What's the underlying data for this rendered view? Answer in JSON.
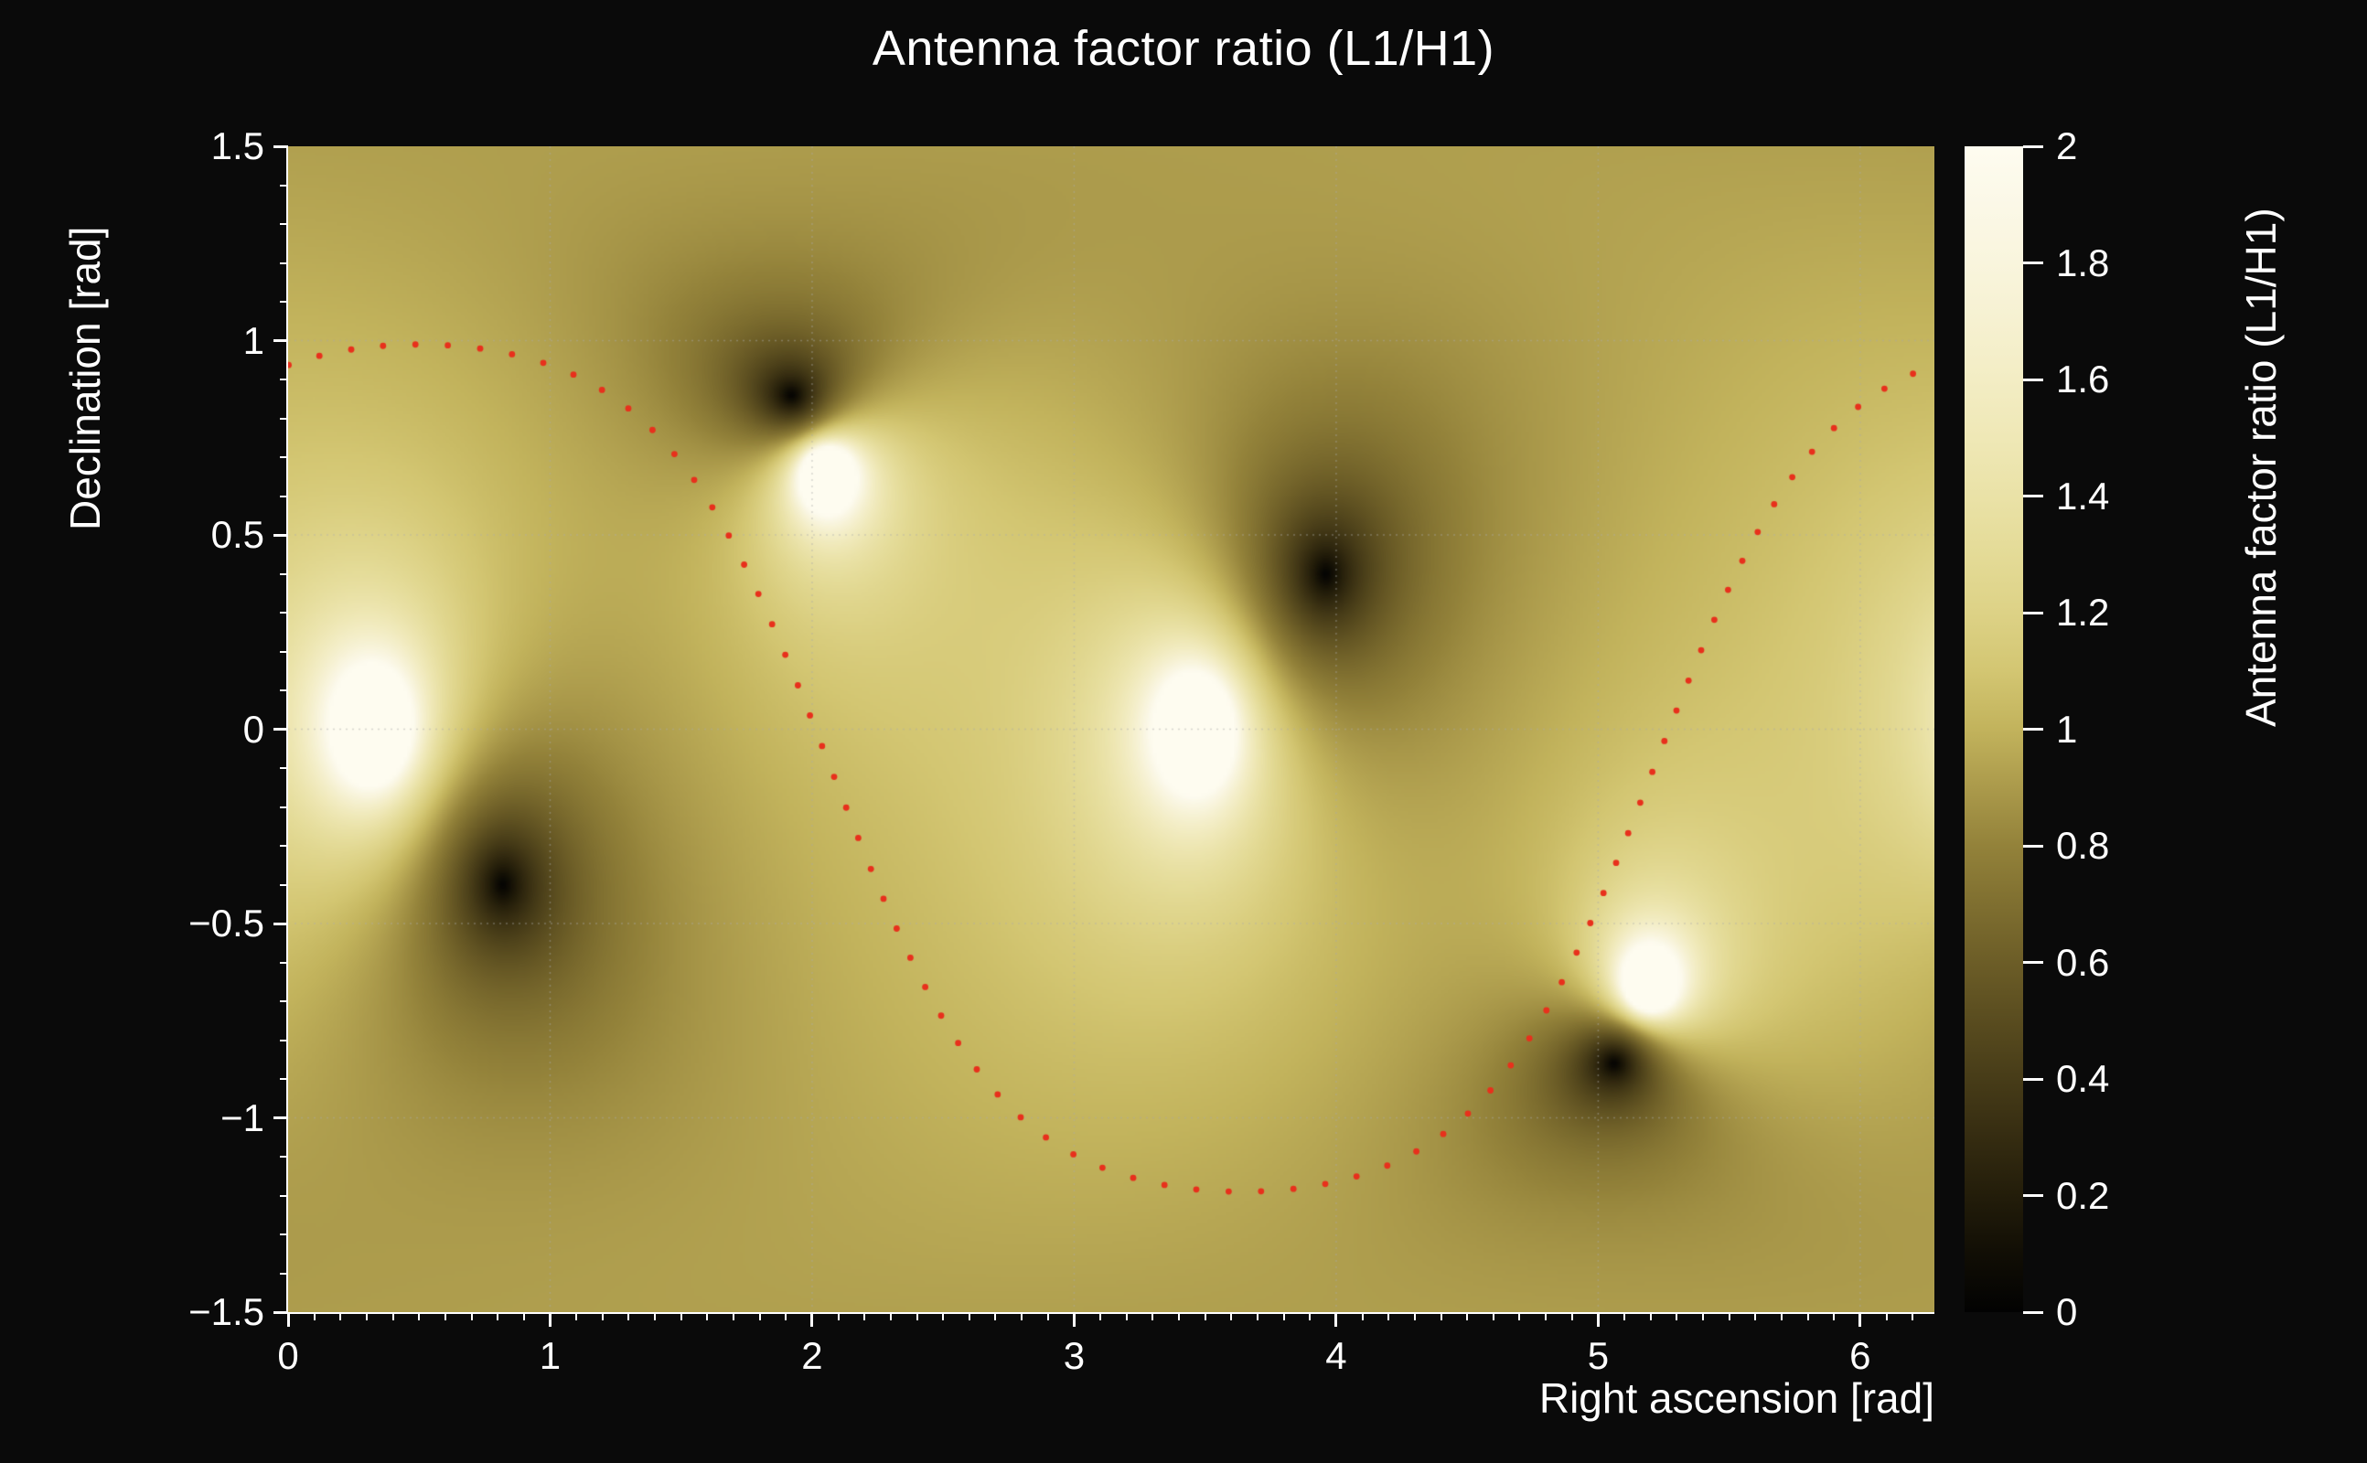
{
  "figure": {
    "title": "Antenna factor ratio (L1/H1)",
    "background_color": "#0a0a0a",
    "text_color": "#ffffff"
  },
  "axes": {
    "x": {
      "title": "Right ascension [rad]",
      "range": [
        0,
        6.2832
      ],
      "tick_values": [
        0,
        1,
        2,
        3,
        4,
        5,
        6
      ],
      "tick_labels": [
        "0",
        "1",
        "2",
        "3",
        "4",
        "5",
        "6"
      ],
      "minor_step": 0.1
    },
    "y": {
      "title": "Declination [rad]",
      "range": [
        -1.5,
        1.5
      ],
      "tick_values": [
        -1.5,
        -1,
        -0.5,
        0,
        0.5,
        1,
        1.5
      ],
      "tick_labels": [
        "−1.5",
        "−1",
        "−0.5",
        "0",
        "0.5",
        "1",
        "1.5"
      ],
      "minor_step": 0.1
    },
    "z": {
      "title": "Antenna factor ratio (L1/H1)",
      "range": [
        0,
        2
      ],
      "tick_values": [
        0,
        0.2,
        0.4,
        0.6,
        0.8,
        1,
        1.2,
        1.4,
        1.6,
        1.8,
        2
      ],
      "tick_labels": [
        "0",
        "0.2",
        "0.4",
        "0.6",
        "0.8",
        "1",
        "1.2",
        "1.4",
        "1.6",
        "1.8",
        "2"
      ]
    }
  },
  "chart_data": {
    "type": "heatmap",
    "title": "Antenna factor ratio (L1/H1)",
    "xlabel": "Right ascension [rad]",
    "ylabel": "Declination [rad]",
    "zlabel": "Antenna factor ratio (L1/H1)",
    "x_range": [
      0,
      6.2832
    ],
    "y_range": [
      -1.5,
      1.5
    ],
    "z_range": [
      0,
      2
    ],
    "grid": true,
    "grid_color": "rgba(170,170,170,0.45)",
    "background_value": 1.0,
    "minima": [
      [
        0.82,
        -0.4
      ],
      [
        1.92,
        0.86
      ],
      [
        3.96,
        0.4
      ],
      [
        5.06,
        -0.86
      ]
    ],
    "maxima_clipped": [
      [
        0.33,
        0.0
      ],
      [
        2.05,
        0.66
      ],
      [
        3.47,
        0.0
      ],
      [
        5.19,
        -0.66
      ]
    ],
    "model": {
      "softness": 0.35,
      "description": "Ratio of L1 to H1 antenna response over the sky: value ~1 over most of the map, falls to 0 at the four L1 null directions (two antipodal pairs, dark cusps) and exceeds the clipped maximum 2 near the four H1 null directions (bright cream blobs)."
    },
    "colormap": {
      "name": "black-olive-yellow-cream",
      "stops": [
        "#020202",
        "#110e05",
        "#231d0a",
        "#352c11",
        "#473c18",
        "#594c1f",
        "#6c5d27",
        "#7f6f30",
        "#93823a",
        "#ab9a4b",
        "#c2b35c",
        "#d3c672",
        "#ddd286",
        "#e4db97",
        "#eae2a7",
        "#efe8b6",
        "#f3edc4",
        "#f6f1d1",
        "#f9f5dd",
        "#fbf8e7",
        "#fefcf0"
      ]
    },
    "track": {
      "name": "sky-track-dotted",
      "color": "#e8301c",
      "center": -0.1,
      "amplitude": 1.09,
      "phase": 0.5,
      "flatten": 1.4,
      "dot_count": 80
    }
  }
}
